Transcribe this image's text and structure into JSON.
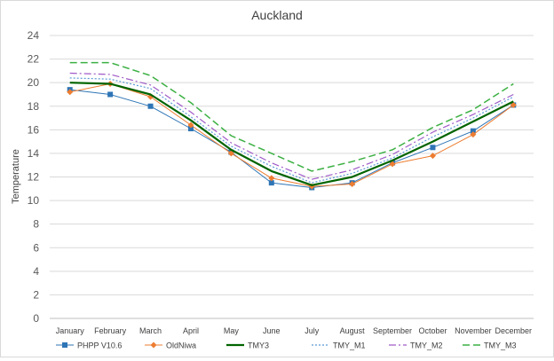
{
  "chart_data": {
    "type": "line",
    "title": "Auckland",
    "ylabel": "Temperature",
    "xlabel": "",
    "ylim": [
      0,
      24
    ],
    "ytick_step": 2,
    "grid": true,
    "legend_position": "bottom",
    "categories": [
      "January",
      "February",
      "March",
      "April",
      "May",
      "June",
      "July",
      "August",
      "September",
      "October",
      "November",
      "December"
    ],
    "series": [
      {
        "name": "PHPP V10.6",
        "color": "#2e75b6",
        "dash": "solid",
        "width": 1,
        "marker": "square",
        "values": [
          19.4,
          19.0,
          18.0,
          16.1,
          14.1,
          11.5,
          11.1,
          11.5,
          13.2,
          14.5,
          15.9,
          18.1
        ]
      },
      {
        "name": "OldNiwa",
        "color": "#ed7d31",
        "dash": "solid",
        "width": 1,
        "marker": "diamond",
        "values": [
          19.2,
          19.9,
          18.8,
          16.4,
          14.0,
          11.9,
          11.2,
          11.4,
          13.1,
          13.8,
          15.6,
          18.1
        ]
      },
      {
        "name": "TMY3",
        "color": "#006400",
        "dash": "solid",
        "width": 2.2,
        "marker": "none",
        "values": [
          20.0,
          19.9,
          19.0,
          16.8,
          14.3,
          12.5,
          11.3,
          12.0,
          13.4,
          15.0,
          16.7,
          18.4
        ]
      },
      {
        "name": "TMY_M1",
        "color": "#5b9bd5",
        "dash": "dot",
        "width": 1.2,
        "marker": "none",
        "values": [
          20.4,
          20.3,
          19.5,
          17.1,
          14.6,
          12.9,
          11.5,
          12.3,
          13.6,
          15.4,
          17.0,
          18.8
        ]
      },
      {
        "name": "TMY_M2",
        "color": "#a05bc8",
        "dash": "dashdot",
        "width": 1.2,
        "marker": "none",
        "values": [
          20.8,
          20.7,
          19.8,
          17.5,
          14.9,
          13.2,
          11.8,
          12.6,
          13.9,
          15.8,
          17.3,
          19.0
        ]
      },
      {
        "name": "TMY_M3",
        "color": "#3cb043",
        "dash": "dash",
        "width": 1.5,
        "marker": "none",
        "values": [
          21.7,
          21.7,
          20.6,
          18.3,
          15.5,
          14.0,
          12.5,
          13.3,
          14.3,
          16.2,
          17.7,
          19.9
        ]
      }
    ]
  }
}
